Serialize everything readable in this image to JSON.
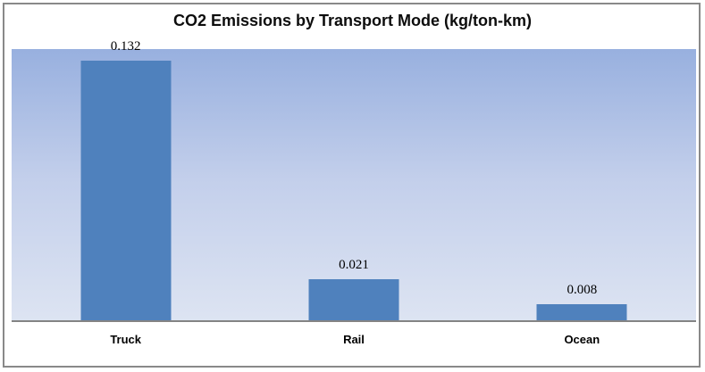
{
  "chart_data": {
    "type": "bar",
    "title": "CO2 Emissions by Transport Mode (kg/ton-km)",
    "categories": [
      "Truck",
      "Rail",
      "Ocean"
    ],
    "values": [
      0.132,
      0.021,
      0.008
    ],
    "value_labels": [
      "0.132",
      "0.021",
      "0.008"
    ],
    "xlabel": "",
    "ylabel": "",
    "ylim": [
      0,
      0.138
    ],
    "grid": false,
    "legend": false,
    "data_labels_shown": true,
    "colors": {
      "bar_fill": "#4f81bd",
      "plot_bg_top": "#98b0df",
      "plot_bg_mid": "#c3cfeb",
      "plot_bg_bottom": "#dde4f2",
      "axis_line": "#848484",
      "chart_border": "#898989",
      "text": "#000000"
    }
  }
}
